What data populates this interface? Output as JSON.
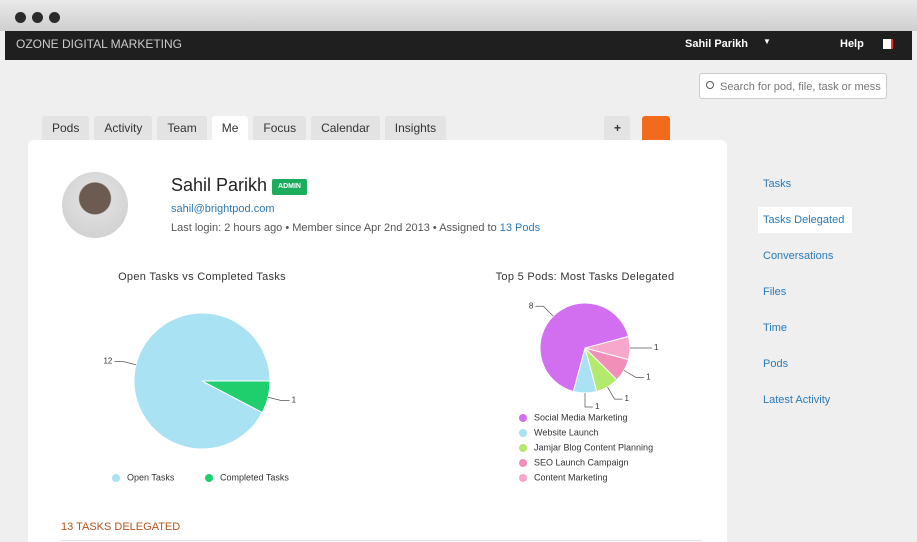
{
  "nav": {
    "brand": "OZONE DIGITAL MARKETING",
    "user": "Sahil Parikh",
    "help": "Help"
  },
  "search": {
    "placeholder": "Search for pod, file, task or mess"
  },
  "tabs": [
    "Pods",
    "Activity",
    "Team",
    "Me",
    "Focus",
    "Calendar",
    "Insights"
  ],
  "add_button": "+",
  "profile": {
    "name": "Sahil Parikh",
    "badge": "ADMIN",
    "email": "sahil@brightpod.com",
    "last_login": "Last login: 2 hours ago • Member since Apr 2nd 2013 • Assigned to",
    "pods_link": "13 Pods"
  },
  "sidebar": [
    "Tasks",
    "Tasks Delegated",
    "Conversations",
    "Files",
    "Time",
    "Pods",
    "Latest Activity"
  ],
  "chart_data": [
    {
      "type": "pie",
      "title": "Open Tasks vs Completed Tasks",
      "categories": [
        "Open Tasks",
        "Completed Tasks"
      ],
      "values": [
        12,
        1
      ],
      "colors": [
        "#a9e2f3",
        "#1fcf6e"
      ]
    },
    {
      "type": "pie",
      "title": "Top 5 Pods: Most Tasks Delegated",
      "categories": [
        "Social Media Marketing",
        "Website Launch",
        "Jamjar Blog Content Planning",
        "SEO Launch Campaign",
        "Content Marketing"
      ],
      "values": [
        8,
        1,
        1,
        1,
        1
      ],
      "colors": [
        "#d26ef0",
        "#a9e2f3",
        "#b3ea6e",
        "#f28fb8",
        "#f7a6cc"
      ]
    }
  ],
  "section_title": "13 TASKS DELEGATED"
}
